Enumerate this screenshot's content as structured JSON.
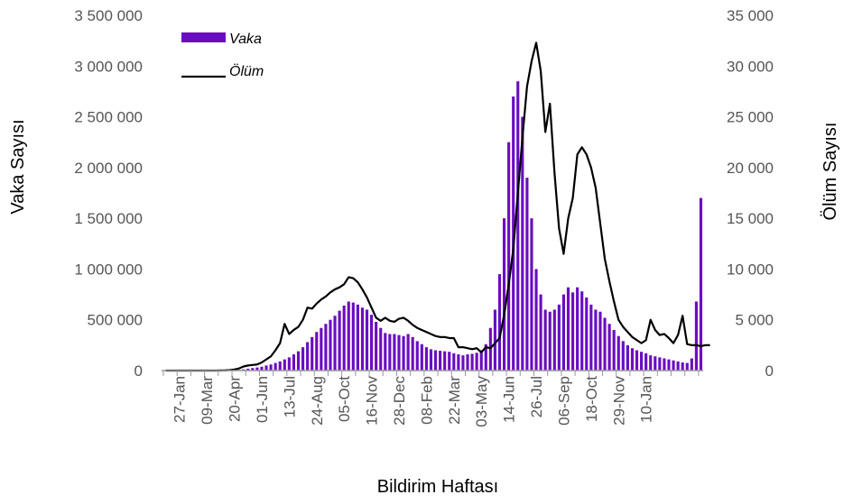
{
  "chart_data": {
    "type": "bar+line",
    "x_label": "Bildirim Haftası",
    "y_left_label": "Vaka Sayısı",
    "y_right_label": "Ölüm Sayısı",
    "y_left_ticks": [
      "0",
      "500 000",
      "1 000 000",
      "1 500 000",
      "2 000 000",
      "2 500 000",
      "3 000 000",
      "3 500 000"
    ],
    "y_right_ticks": [
      "0",
      "5 000",
      "10 000",
      "15 000",
      "20 000",
      "25 000",
      "30 000",
      "35 000"
    ],
    "y_left_lim": [
      0,
      3500000
    ],
    "y_right_lim": [
      0,
      35000
    ],
    "x_tick_labels": [
      "27-Jan",
      "09-Mar",
      "20-Apr",
      "01-Jun",
      "13-Jul",
      "24-Aug",
      "05-Oct",
      "16-Nov",
      "28-Dec",
      "08-Feb",
      "22-Mar",
      "03-May",
      "14-Jun",
      "26-Jul",
      "06-Sep",
      "18-Oct",
      "29-Nov",
      "10-Jan"
    ],
    "legend": {
      "position": "top-left",
      "entries": [
        "Vaka",
        "Ölüm"
      ]
    },
    "colors": {
      "bar": "#6A0DC0",
      "line": "#000000",
      "axis": "#999999"
    },
    "series": [
      {
        "name": "Vaka",
        "axis": "left",
        "kind": "bar",
        "values": [
          0,
          0,
          0,
          0,
          0,
          0,
          0,
          0,
          0,
          0,
          0,
          0,
          500,
          1000,
          2000,
          3000,
          6000,
          12000,
          18000,
          25000,
          30000,
          38000,
          50000,
          60000,
          75000,
          90000,
          110000,
          130000,
          160000,
          190000,
          230000,
          280000,
          330000,
          380000,
          420000,
          460000,
          500000,
          540000,
          590000,
          640000,
          680000,
          670000,
          650000,
          620000,
          600000,
          550000,
          480000,
          420000,
          370000,
          360000,
          360000,
          350000,
          340000,
          360000,
          330000,
          290000,
          260000,
          230000,
          210000,
          200000,
          195000,
          190000,
          185000,
          170000,
          160000,
          150000,
          160000,
          165000,
          175000,
          200000,
          260000,
          420000,
          600000,
          950000,
          1500000,
          2250000,
          2700000,
          2850000,
          2500000,
          1900000,
          1500000,
          1000000,
          750000,
          600000,
          580000,
          600000,
          650000,
          750000,
          820000,
          770000,
          820000,
          780000,
          720000,
          650000,
          600000,
          580000,
          520000,
          460000,
          400000,
          340000,
          290000,
          250000,
          220000,
          200000,
          185000,
          170000,
          150000,
          140000,
          130000,
          120000,
          110000,
          100000,
          90000,
          80000,
          75000,
          120000,
          680000,
          1700000
        ]
      },
      {
        "name": "Ölüm",
        "axis": "right",
        "kind": "line",
        "values": [
          0,
          0,
          0,
          0,
          0,
          0,
          0,
          0,
          0,
          0,
          0,
          0,
          10,
          20,
          50,
          100,
          200,
          400,
          500,
          550,
          600,
          800,
          1100,
          1400,
          2000,
          2700,
          4600,
          3600,
          4000,
          4300,
          5000,
          6200,
          6100,
          6600,
          7000,
          7300,
          7700,
          8000,
          8200,
          8500,
          9200,
          9100,
          8700,
          8000,
          7200,
          6200,
          5200,
          4900,
          5200,
          4900,
          4800,
          5100,
          5200,
          4900,
          4500,
          4200,
          4000,
          3800,
          3600,
          3400,
          3300,
          3300,
          3200,
          3200,
          2300,
          2300,
          2200,
          2100,
          2200,
          1800,
          2300,
          2200,
          2700,
          3200,
          5500,
          8500,
          12000,
          17500,
          23000,
          28000,
          30500,
          32300,
          29500,
          23500,
          26300,
          19500,
          14000,
          11500,
          15000,
          17000,
          21300,
          22000,
          21300,
          20000,
          18000,
          14500,
          11000,
          8800,
          6800,
          5000,
          4300,
          3800,
          3300,
          3000,
          2700,
          3000,
          5000,
          4000,
          3500,
          3600,
          3200,
          2700,
          3500,
          5400,
          2600,
          2500,
          2500,
          2400,
          2500,
          2500
        ]
      }
    ]
  }
}
